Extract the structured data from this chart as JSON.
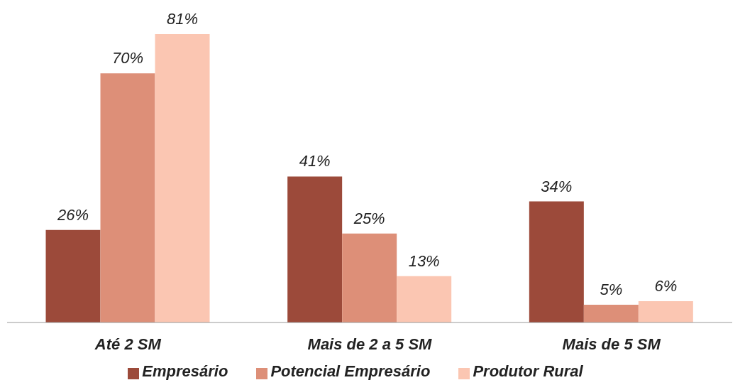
{
  "chart_data": {
    "type": "bar",
    "categories": [
      "Até 2 SM",
      "Mais de 2 a 5 SM",
      "Mais de 5 SM"
    ],
    "series": [
      {
        "name": "Empresário",
        "color": "#9c4a3a",
        "values": [
          26,
          41,
          34
        ],
        "value_labels": [
          "26%",
          "41%",
          "34%"
        ]
      },
      {
        "name": "Potencial Empresário",
        "color": "#dd8f78",
        "values": [
          70,
          25,
          5
        ],
        "value_labels": [
          "70%",
          "25%",
          "5%"
        ]
      },
      {
        "name": "Produtor Rural",
        "color": "#fbc6b2",
        "values": [
          81,
          13,
          6
        ],
        "value_labels": [
          "81%",
          "13%",
          "6%"
        ]
      }
    ],
    "legend": "bottom"
  }
}
